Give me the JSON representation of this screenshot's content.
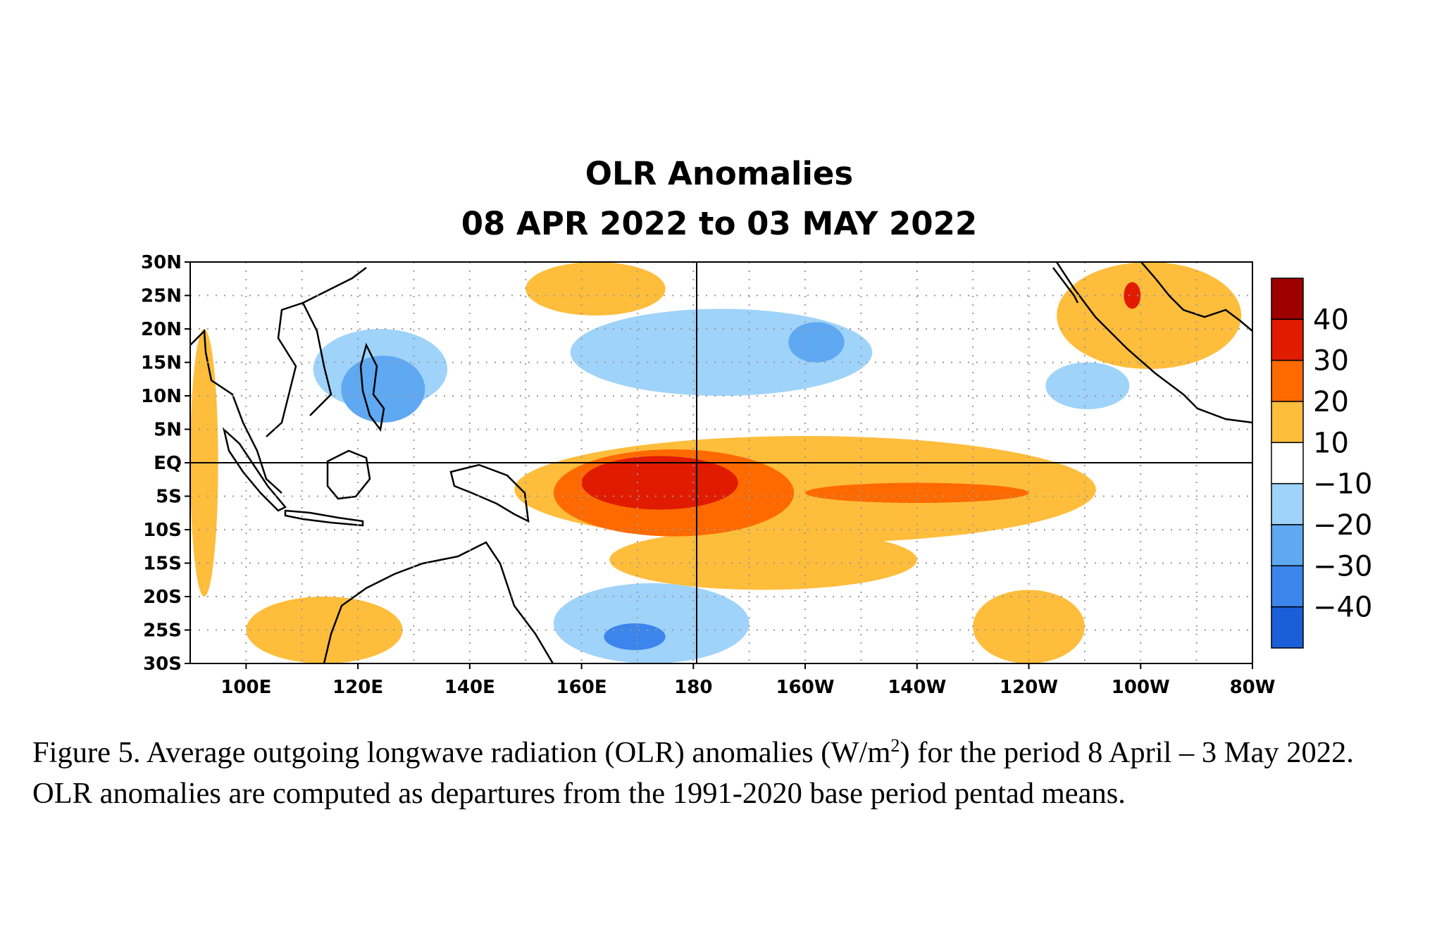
{
  "chart_data": {
    "type": "heatmap",
    "title": "OLR Anomalies",
    "subtitle": "08 APR 2022 to 03 MAY 2022",
    "lon_range": [
      90,
      280
    ],
    "lat_range": [
      -30,
      30
    ],
    "x_ticks": [
      "100E",
      "120E",
      "140E",
      "160E",
      "180",
      "160W",
      "140W",
      "120W",
      "100W",
      "80W"
    ],
    "y_ticks": [
      "30N",
      "25N",
      "20N",
      "15N",
      "10N",
      "5N",
      "EQ",
      "5S",
      "10S",
      "15S",
      "20S",
      "25S",
      "30S"
    ],
    "colorbar": {
      "labels": [
        "40",
        "30",
        "20",
        "10",
        "−10",
        "−20",
        "−30",
        "−40"
      ],
      "colors": [
        "#9e0000",
        "#e01b00",
        "#ff6a00",
        "#ffbd3c",
        "#ffffff",
        "#9fd3fa",
        "#5fa8f2",
        "#3c85ec",
        "#1a5fd8"
      ]
    },
    "anomaly_regions": [
      {
        "level": 10,
        "lon": [
          148,
          252
        ],
        "lat": [
          -12,
          4
        ]
      },
      {
        "level": 10,
        "lon": [
          165,
          220
        ],
        "lat": [
          -19,
          -10
        ]
      },
      {
        "level": 10,
        "lon": [
          150,
          175
        ],
        "lat": [
          22,
          30
        ]
      },
      {
        "level": 10,
        "lon": [
          245,
          278
        ],
        "lat": [
          14,
          30
        ]
      },
      {
        "level": 10,
        "lon": [
          100,
          128
        ],
        "lat": [
          -30,
          -20
        ]
      },
      {
        "level": 10,
        "lon": [
          90,
          95
        ],
        "lat": [
          -20,
          20
        ]
      },
      {
        "level": 10,
        "lon": [
          230,
          250
        ],
        "lat": [
          -30,
          -19
        ]
      },
      {
        "level": 20,
        "lon": [
          155,
          198
        ],
        "lat": [
          -11,
          2
        ]
      },
      {
        "level": 20,
        "lon": [
          200,
          240
        ],
        "lat": [
          -6,
          -3
        ]
      },
      {
        "level": 30,
        "lon": [
          160,
          188
        ],
        "lat": [
          -7,
          1
        ]
      },
      {
        "level": 30,
        "lon": [
          257,
          260
        ],
        "lat": [
          23,
          27
        ]
      },
      {
        "level": -10,
        "lon": [
          112,
          136
        ],
        "lat": [
          8,
          20
        ]
      },
      {
        "level": -10,
        "lon": [
          158,
          212
        ],
        "lat": [
          10,
          23
        ]
      },
      {
        "level": -10,
        "lon": [
          155,
          190
        ],
        "lat": [
          -30,
          -18
        ]
      },
      {
        "level": -10,
        "lon": [
          243,
          258
        ],
        "lat": [
          8,
          15
        ]
      },
      {
        "level": -20,
        "lon": [
          117,
          132
        ],
        "lat": [
          6,
          16
        ]
      },
      {
        "level": -20,
        "lon": [
          197,
          207
        ],
        "lat": [
          15,
          21
        ]
      },
      {
        "level": -30,
        "lon": [
          164,
          175
        ],
        "lat": [
          -28,
          -24
        ]
      }
    ]
  },
  "caption": {
    "part1": "Figure 5. Average outgoing longwave radiation (OLR) anomalies (W/m",
    "sup": "2",
    "part2": ") for the period 8 April – 3 May 2022.  OLR anomalies are computed as departures from the 1991-2020 base period pentad means."
  }
}
